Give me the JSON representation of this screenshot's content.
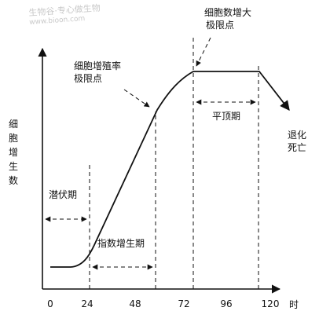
{
  "watermark": {
    "line1": "生物谷·专心做生物",
    "line2": "www.bioon.com"
  },
  "y_axis_label": [
    "细",
    "胞",
    "增",
    "生",
    "数"
  ],
  "x_unit": "时",
  "x_ticks": [
    "0",
    "24",
    "48",
    "72",
    "96",
    "120"
  ],
  "labels": {
    "max_density": [
      "细胞数增大",
      "极限点"
    ],
    "max_growth_rate": [
      "细胞增殖率",
      "极限点"
    ],
    "plateau": "平顶期",
    "decline": [
      "退化",
      "死亡"
    ],
    "lag": "潜伏期",
    "log": "指数增生期"
  }
}
